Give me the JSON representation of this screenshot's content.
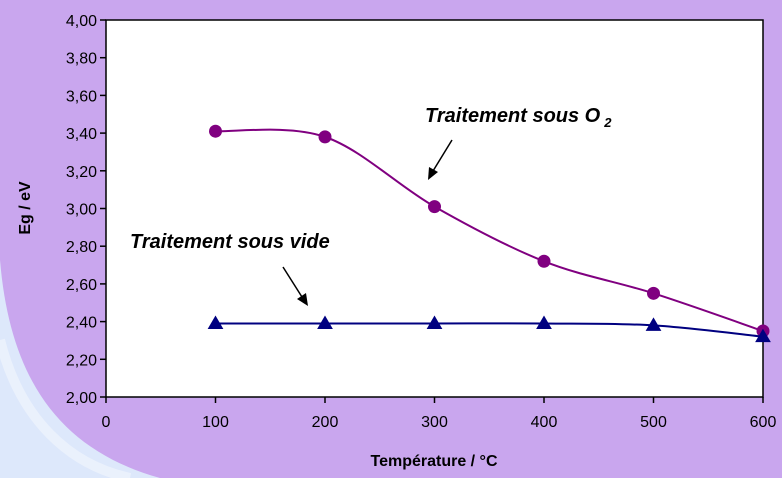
{
  "chart_data": {
    "type": "line",
    "xlabel": "Température / °C",
    "ylabel": "Eg / eV",
    "xlim": [
      0,
      600
    ],
    "ylim": [
      2.0,
      4.0
    ],
    "x_ticks": [
      "0",
      "100",
      "200",
      "300",
      "400",
      "500",
      "600"
    ],
    "y_ticks": [
      "2,00",
      "2,20",
      "2,40",
      "2,60",
      "2,80",
      "3,00",
      "3,20",
      "3,40",
      "3,60",
      "3,80",
      "4,00"
    ],
    "grid": false,
    "legend": "none",
    "series": [
      {
        "x": [
          100,
          200,
          300,
          400,
          500,
          600
        ],
        "values": [
          3.41,
          3.38,
          3.01,
          2.72,
          2.55,
          2.35
        ],
        "color": "#800080",
        "marker": "circle"
      },
      {
        "x": [
          100,
          200,
          300,
          400,
          500,
          600
        ],
        "values": [
          2.39,
          2.39,
          2.39,
          2.39,
          2.38,
          2.32
        ],
        "color": "#000080",
        "marker": "triangle"
      }
    ],
    "annotations": {
      "o2": "Traitement sous O",
      "o2_subscript": "2",
      "vide": "Traitement sous vide"
    }
  },
  "colors": {
    "background": "#c9a6ee",
    "plot_area": "#ffffff"
  }
}
